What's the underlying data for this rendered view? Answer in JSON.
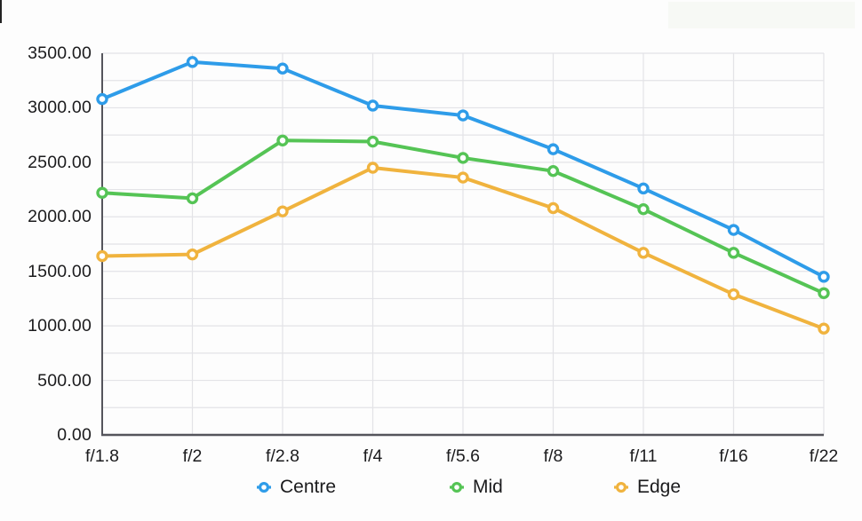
{
  "chart_data": {
    "type": "line",
    "title": "",
    "xlabel": "",
    "ylabel": "",
    "categories": [
      "f/1.8",
      "f/2",
      "f/2.8",
      "f/4",
      "f/5.6",
      "f/8",
      "f/11",
      "f/16",
      "f/22"
    ],
    "series": [
      {
        "name": "Centre",
        "color": "#2e9ce9",
        "values": [
          3080,
          3420,
          3360,
          3020,
          2930,
          2620,
          2260,
          1880,
          1450
        ]
      },
      {
        "name": "Mid",
        "color": "#55c455",
        "values": [
          2220,
          2170,
          2700,
          2690,
          2540,
          2420,
          2070,
          1670,
          1300
        ]
      },
      {
        "name": "Edge",
        "color": "#f0b33e",
        "values": [
          1640,
          1655,
          2050,
          2450,
          2360,
          2080,
          1670,
          1290,
          975
        ]
      }
    ],
    "ylim": [
      0,
      3500
    ],
    "y_major_step": 500,
    "y_minor_step": 250,
    "y_tick_labels": [
      "0.00",
      "500.00",
      "1000.00",
      "1500.00",
      "2000.00",
      "2500.00",
      "3000.00",
      "3500.00"
    ],
    "grid": true,
    "legend_position": "bottom",
    "marker_style": "ring",
    "colors": {
      "grid": "#e3e3e7",
      "axis": "#55555c",
      "text": "#1b1b1d",
      "background": "#fdfdfd",
      "marker_fill": "#ffffff"
    }
  }
}
